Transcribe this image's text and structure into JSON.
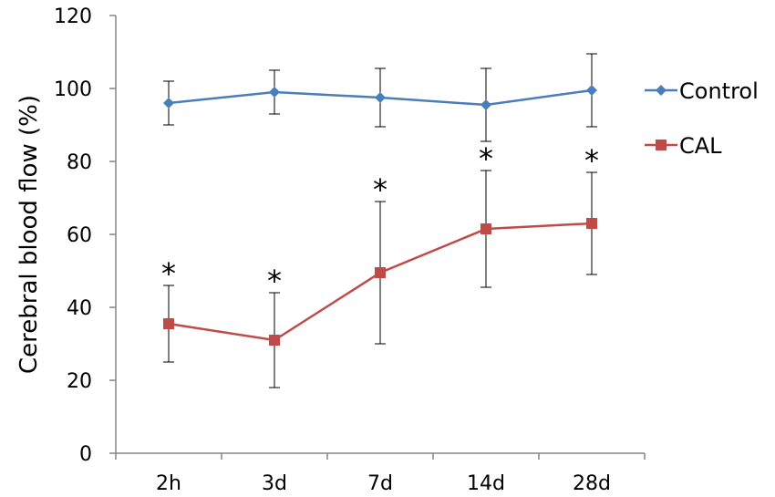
{
  "chart_data": {
    "type": "line",
    "title": "",
    "xlabel": "",
    "ylabel": "Cerebral blood flow (%)",
    "ylim": [
      0,
      120
    ],
    "yticks": [
      0,
      20,
      40,
      60,
      80,
      100,
      120
    ],
    "grid": false,
    "legend_position": "right",
    "categories": [
      "2h",
      "3d",
      "7d",
      "14d",
      "28d"
    ],
    "series": [
      {
        "name": "Control",
        "color": "#4a7ebb",
        "marker": "diamond",
        "values": [
          96,
          99,
          97.5,
          95.5,
          99.5
        ],
        "error": [
          6,
          6,
          8,
          10,
          10
        ]
      },
      {
        "name": "CAL",
        "color": "#be4b48",
        "marker": "square",
        "values": [
          35.5,
          31,
          49.5,
          61.5,
          63
        ],
        "error": [
          10.5,
          13,
          19.5,
          16,
          14
        ]
      }
    ],
    "annotations": [
      {
        "category": "2h",
        "text": "*"
      },
      {
        "category": "3d",
        "text": "*"
      },
      {
        "category": "7d",
        "text": "*"
      },
      {
        "category": "14d",
        "text": "*"
      },
      {
        "category": "28d",
        "text": "*"
      }
    ]
  }
}
